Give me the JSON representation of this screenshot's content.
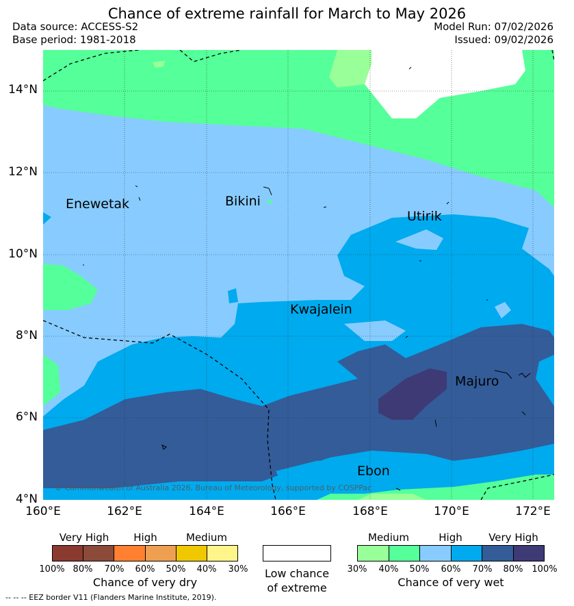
{
  "title": "Chance of extreme rainfall for March to May 2026",
  "data_source": "Data source: ACCESS-S2",
  "base_period": "Base period: 1981-2018",
  "model_run": "Model Run: 07/02/2026",
  "issued": "Issued: 09/02/2026",
  "map": {
    "lat_labels": [
      "14°N",
      "12°N",
      "10°N",
      "8°N",
      "6°N",
      "4°N"
    ],
    "lon_labels": [
      "160°E",
      "162°E",
      "164°E",
      "166°E",
      "168°E",
      "170°E",
      "172°E"
    ],
    "places": [
      "Enewetak",
      "Bikini",
      "Utirik",
      "Kwajalein",
      "Majuro",
      "Ebon"
    ],
    "copyright": "© Commonwealth of Australia 2026, Bureau of Meteorology, supported by COSPPac",
    "colors": {
      "medium_wet": "#99ff99",
      "mid_wet": "#55ff99",
      "high_wet": "#88ccff",
      "high2_wet": "#00aaee",
      "very_high_wet": "#335c99",
      "very_high2_wet": "#3d3a75"
    }
  },
  "dry_legend": {
    "levels": [
      "Very High",
      "High",
      "Medium"
    ],
    "ticks": [
      "100%",
      "80%",
      "70%",
      "60%",
      "50%",
      "40%",
      "30%"
    ],
    "title": "Chance of very dry",
    "colors": [
      "#8b3a2f",
      "#8b4a3a",
      "#ff8030",
      "#eea050",
      "#f0c800",
      "#fff58a"
    ]
  },
  "low_chance": {
    "line1": "Low chance",
    "line2": "of extreme"
  },
  "wet_legend": {
    "levels": [
      "Medium",
      "High",
      "Very High"
    ],
    "ticks": [
      "30%",
      "40%",
      "50%",
      "60%",
      "70%",
      "80%",
      "100%"
    ],
    "title": "Chance of very wet",
    "colors": [
      "#99ff99",
      "#55ff99",
      "#88ccff",
      "#00aaee",
      "#335c99",
      "#3d3a75"
    ]
  },
  "eez_note": "--  --  -- EEZ border V11 (Flanders Marine Institute, 2019)."
}
